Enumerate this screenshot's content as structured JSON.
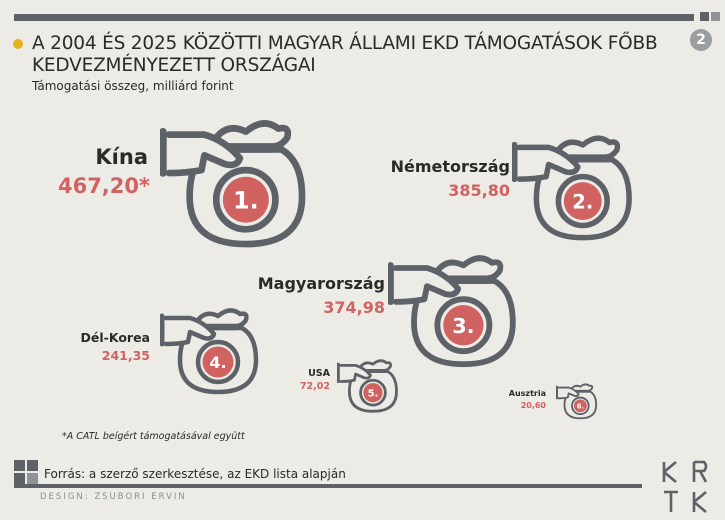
{
  "page_number": "2",
  "title": "A 2004 ÉS 2025 KÖZÖTTI MAGYAR ÁLLAMI EKD TÁMOGATÁSOK FŐBB KEDVEZMÉNYEZETT ORSZÁGAI",
  "subtitle": "Támogatási összeg, milliárd forint",
  "items": [
    {
      "rank": "1.",
      "country": "Kína",
      "value": "467,20*"
    },
    {
      "rank": "2.",
      "country": "Németország",
      "value": "385,80"
    },
    {
      "rank": "3.",
      "country": "Magyarország",
      "value": "374,98"
    },
    {
      "rank": "4.",
      "country": "Dél-Korea",
      "value": "241,35"
    },
    {
      "rank": "5.",
      "country": "USA",
      "value": "72,02"
    },
    {
      "rank": "6.",
      "country": "Ausztria",
      "value": "20,60"
    }
  ],
  "footnote": "*A CATL beígért támogatásával együtt",
  "source": "Forrás: a szerző szerkesztése, az EKD lista alapján",
  "design_credit": "DESIGN: ZSUBORI ERVIN",
  "logo_text": "KRTK",
  "colors": {
    "accent": "#d06262",
    "dark": "#5d6268",
    "bullet": "#e8b21e",
    "background": "#ecebe5"
  },
  "icon": "money-bag-hand-icon"
}
